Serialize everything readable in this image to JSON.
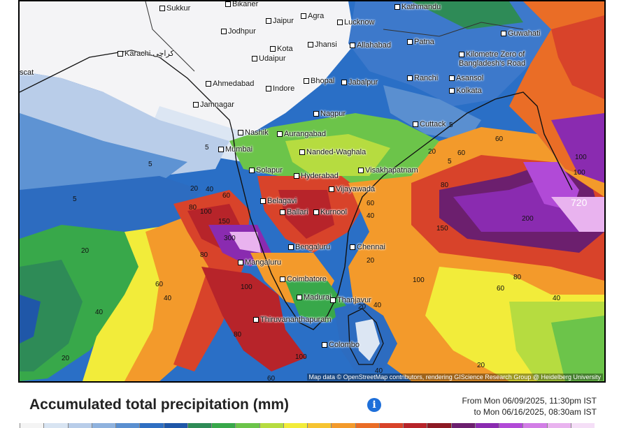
{
  "map": {
    "attribution": "Map data © OpenStreetMap contributors, rendering GIScience Research Group @ Heidelberg University",
    "cities": [
      {
        "name": "Sukkur"
      },
      {
        "name": "Bikaner"
      },
      {
        "name": "Kathmandu"
      },
      {
        "name": "Agra"
      },
      {
        "name": "Jaipur"
      },
      {
        "name": "Lucknow"
      },
      {
        "name": "Guwahati"
      },
      {
        "name": "Jodhpur"
      },
      {
        "name": "Karachi کراچی"
      },
      {
        "name": "Kota"
      },
      {
        "name": "Jhansi"
      },
      {
        "name": "Allahabad"
      },
      {
        "name": "Patna"
      },
      {
        "name": "Udaipur"
      },
      {
        "name": "Kilometre Zero of Bangladesh's Road"
      },
      {
        "name": "Ahmedabad"
      },
      {
        "name": "Indore"
      },
      {
        "name": "Bhopal"
      },
      {
        "name": "Jabalpur"
      },
      {
        "name": "Ranchi"
      },
      {
        "name": "Asansol"
      },
      {
        "name": "Kolkata"
      },
      {
        "name": "Jamnagar"
      },
      {
        "name": "Nagpur"
      },
      {
        "name": "Cuttack"
      },
      {
        "name": "Nashik"
      },
      {
        "name": "Aurangabad"
      },
      {
        "name": "Mumbai"
      },
      {
        "name": "Nanded-Waghala"
      },
      {
        "name": "Solapur"
      },
      {
        "name": "Hyderabad"
      },
      {
        "name": "Visakhapatnam"
      },
      {
        "name": "Vijayawada"
      },
      {
        "name": "Belagavi"
      },
      {
        "name": "Ballari"
      },
      {
        "name": "Kurnool"
      },
      {
        "name": "Bengaluru"
      },
      {
        "name": "Chennai"
      },
      {
        "name": "Mangaluru"
      },
      {
        "name": "Coimbatore"
      },
      {
        "name": "Madurai"
      },
      {
        "name": "Thanjavur"
      },
      {
        "name": "Thiruvananthapuram"
      },
      {
        "name": "Colombo"
      },
      {
        "name": "scat"
      }
    ],
    "contour_labels": [
      "5",
      "5",
      "5",
      "5",
      "20",
      "40",
      "60",
      "80",
      "100",
      "150",
      "300",
      "100",
      "80",
      "60",
      "40",
      "20",
      "40",
      "20",
      "80",
      "100",
      "60",
      "40",
      "20",
      "100",
      "150",
      "200",
      "80",
      "60",
      "40",
      "20",
      "40",
      "60",
      "100",
      "720",
      "5",
      "20",
      "60",
      "100",
      "80",
      "40",
      "20",
      "60"
    ]
  },
  "legend": {
    "title": "Accumulated total precipitation (mm)",
    "info_icon": "i",
    "from_text": "From Mon 06/09/2025, 11:30pm IST",
    "to_text": "to Mon 06/16/2025, 08:30am IST",
    "scale_colors": [
      "#f4f4f4",
      "#d8e4f2",
      "#b8cde9",
      "#8fb2de",
      "#5a8fd0",
      "#2f6fc2",
      "#1f57a8",
      "#2e8b57",
      "#38a84a",
      "#6cc44a",
      "#b6dc40",
      "#f2ec3a",
      "#f6c431",
      "#f39a2b",
      "#ea6d26",
      "#d8432a",
      "#b7242a",
      "#8d1a24",
      "#6c1f6e",
      "#8a2bb0",
      "#b14ad7",
      "#d27de6",
      "#e9b3ef",
      "#f5dff7"
    ]
  }
}
